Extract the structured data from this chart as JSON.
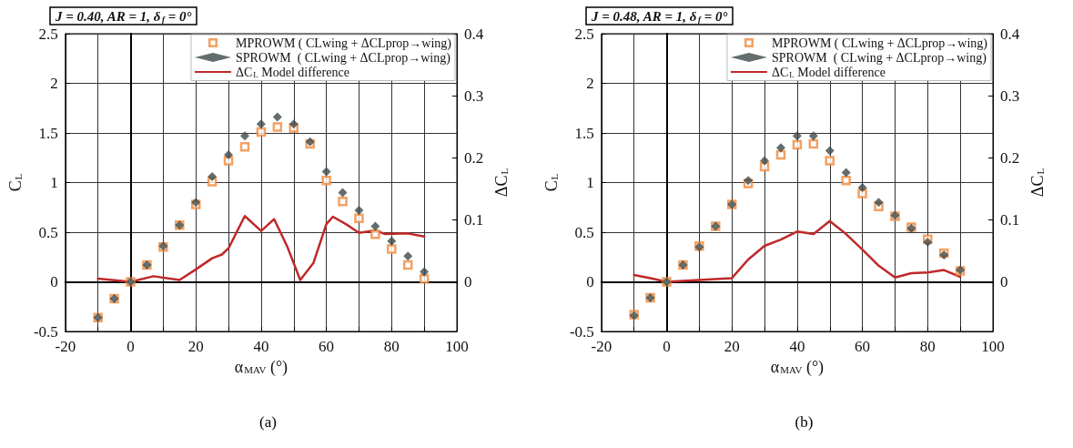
{
  "chart_data": [
    {
      "type": "scatter",
      "subtitle": "J = 0.40, AR = 1, δ$_{f}$ = 0°",
      "xlabel": "α$_{MAV}$ (°)",
      "ylabel": "C$_{L}$",
      "y2label": "ΔC$_{L}$",
      "annotations": [
        "(a)"
      ],
      "x": [
        -10,
        -5,
        0,
        5,
        10,
        15,
        20,
        25,
        30,
        35,
        40,
        45,
        50,
        55,
        60,
        65,
        70,
        75,
        80,
        85,
        90
      ],
      "series": [
        {
          "name": "MPROWM ( CLwing + ΔCLprop→wing)",
          "color": "#f08a3c",
          "marker": "square",
          "values": [
            -0.36,
            -0.17,
            0,
            0.17,
            0.35,
            0.57,
            0.78,
            1.01,
            1.22,
            1.36,
            1.51,
            1.56,
            1.55,
            1.39,
            1.02,
            0.81,
            0.64,
            0.48,
            0.33,
            0.17,
            0.03
          ]
        },
        {
          "name": "SPROWM  ( CLwing + ΔCLprop→wing)",
          "color": "#3d4a4a",
          "marker": "diamond",
          "values": [
            -0.36,
            -0.17,
            0,
            0.17,
            0.36,
            0.57,
            0.8,
            1.06,
            1.28,
            1.47,
            1.59,
            1.66,
            1.59,
            1.41,
            1.11,
            0.9,
            0.72,
            0.56,
            0.41,
            0.26,
            0.1
          ]
        },
        {
          "name": "ΔC$_{L}$ Model difference",
          "type": "line",
          "axis": "y2",
          "color": "#c0282a",
          "marker": "none",
          "x": [
            -10,
            0,
            7,
            15,
            20,
            25,
            28,
            30,
            35,
            40,
            44,
            48,
            52,
            56,
            60,
            62,
            66,
            70,
            75,
            78,
            85,
            90
          ],
          "values": [
            0.005,
            0,
            0.009,
            0.003,
            0.02,
            0.038,
            0.044,
            0.054,
            0.106,
            0.082,
            0.101,
            0.057,
            0.003,
            0.03,
            0.093,
            0.105,
            0.093,
            0.079,
            0.083,
            0.077,
            0.078,
            0.073
          ]
        }
      ],
      "xlim": [
        -20,
        100
      ],
      "xticks": [
        -20,
        {
          "value": -10,
          "label": null
        },
        0,
        {
          "value": 10,
          "label": null
        },
        20,
        {
          "value": 30,
          "label": null
        },
        40,
        {
          "value": 50,
          "label": null
        },
        60,
        {
          "value": 70,
          "label": null
        },
        80,
        {
          "value": 90,
          "label": null
        },
        100
      ],
      "ylim": [
        -0.5,
        2.5
      ],
      "yticks": [
        -0.5,
        0,
        0.5,
        1,
        1.5,
        2,
        2.5
      ],
      "y2lim": [
        -0.08,
        0.4
      ],
      "y2ticks": [
        0,
        0.1,
        0.2,
        0.3,
        0.4
      ],
      "grid": true,
      "legend": "top right"
    },
    {
      "type": "scatter",
      "subtitle": "J = 0.48, AR = 1, δ$_{f}$ = 0°",
      "xlabel": "α$_{MAV}$ (°)",
      "ylabel": "C$_{L}$",
      "y2label": "ΔC$_{L}$",
      "annotations": [
        "(b)"
      ],
      "x": [
        -10,
        -5,
        0,
        5,
        10,
        15,
        20,
        25,
        30,
        35,
        40,
        45,
        50,
        55,
        60,
        65,
        70,
        75,
        80,
        85,
        90
      ],
      "series": [
        {
          "name": "MPROWM ( CLwing + ΔCLprop→wing)",
          "color": "#f08a3c",
          "marker": "square",
          "values": [
            -0.33,
            -0.16,
            0,
            0.17,
            0.36,
            0.56,
            0.78,
            0.99,
            1.16,
            1.28,
            1.38,
            1.39,
            1.22,
            1.02,
            0.89,
            0.76,
            0.66,
            0.55,
            0.43,
            0.29,
            0.11
          ]
        },
        {
          "name": "SPROWM  ( CLwing + ΔCLprop→wing)",
          "color": "#3d4a4a",
          "marker": "diamond",
          "values": [
            -0.34,
            -0.16,
            0,
            0.17,
            0.35,
            0.56,
            0.78,
            1.02,
            1.22,
            1.35,
            1.47,
            1.47,
            1.32,
            1.1,
            0.95,
            0.8,
            0.67,
            0.54,
            0.4,
            0.27,
            0.12
          ]
        },
        {
          "name": "ΔC$_{L}$ Model difference",
          "type": "line",
          "axis": "y2",
          "color": "#c0282a",
          "marker": "none",
          "x": [
            -10,
            -5,
            0,
            10,
            20,
            25,
            30,
            35,
            40,
            45,
            50,
            55,
            60,
            65,
            70,
            75,
            80,
            85,
            90
          ],
          "values": [
            0.011,
            0.006,
            0,
            0.003,
            0.006,
            0.036,
            0.058,
            0.068,
            0.081,
            0.077,
            0.098,
            0.077,
            0.052,
            0.026,
            0.007,
            0.014,
            0.015,
            0.019,
            0.008
          ]
        }
      ],
      "xlim": [
        -20,
        100
      ],
      "xticks": [
        -20,
        {
          "value": -10,
          "label": null
        },
        0,
        {
          "value": 10,
          "label": null
        },
        20,
        {
          "value": 30,
          "label": null
        },
        40,
        {
          "value": 50,
          "label": null
        },
        60,
        {
          "value": 70,
          "label": null
        },
        80,
        {
          "value": 90,
          "label": null
        },
        100
      ],
      "ylim": [
        -0.5,
        2.5
      ],
      "yticks": [
        -0.5,
        0,
        0.5,
        1,
        1.5,
        2,
        2.5
      ],
      "y2lim": [
        -0.08,
        0.4
      ],
      "y2ticks": [
        0,
        0.1,
        0.2,
        0.3,
        0.4
      ],
      "grid": true,
      "legend": "top right"
    }
  ]
}
